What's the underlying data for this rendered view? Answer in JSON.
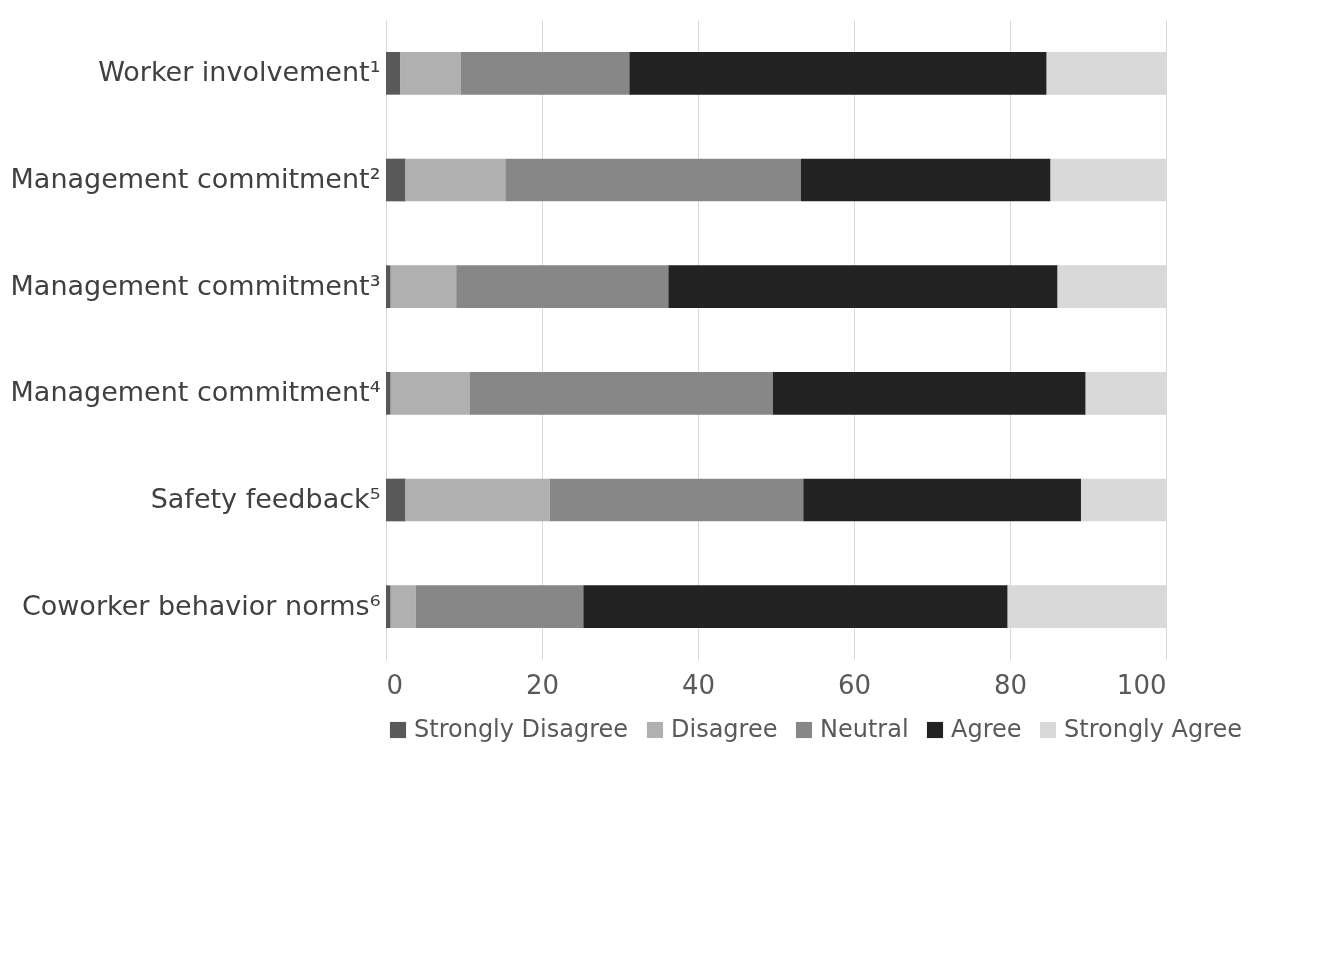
{
  "chart_data": {
    "type": "bar",
    "orientation": "horizontal",
    "stacked": true,
    "categories": [
      "Worker involvement¹",
      "Management commitment²",
      "Management commitment³",
      "Management commitment⁴",
      "Safety feedback⁵",
      "Coworker behavior norms⁶"
    ],
    "series": [
      {
        "name": "Strongly Disagree",
        "color": "#595959",
        "values": [
          1.8,
          2.5,
          0.6,
          0.6,
          2.5,
          0.6
        ]
      },
      {
        "name": "Disagree",
        "color": "#b0b0b0",
        "values": [
          7.8,
          12.8,
          8.4,
          10.1,
          18.5,
          3.2
        ]
      },
      {
        "name": "Neutral",
        "color": "#878787",
        "values": [
          21.6,
          37.9,
          27.2,
          38.9,
          32.5,
          21.5
        ]
      },
      {
        "name": "Agree",
        "color": "#222222",
        "values": [
          53.5,
          32.0,
          49.9,
          40.1,
          35.6,
          54.4
        ]
      },
      {
        "name": "Strongly Agree",
        "color": "#d9d9d9",
        "values": [
          15.3,
          14.8,
          13.9,
          10.3,
          10.9,
          20.3
        ]
      }
    ],
    "xlim": [
      0,
      100
    ],
    "xticks": [
      0,
      20,
      40,
      60,
      80,
      100
    ],
    "grid": "x",
    "legend": "bottom"
  }
}
